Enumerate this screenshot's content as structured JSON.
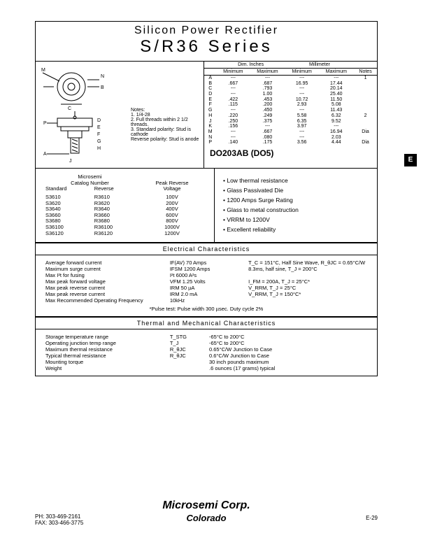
{
  "header": {
    "line1": "Silicon Power Rectifier",
    "line2": "S/R36 Series"
  },
  "notes": {
    "title": "Notes:",
    "items": [
      "1. 1/4-28",
      "2. Full threads within 2 1/2 threads.",
      "3. Standard polarity: Stud is cathode",
      "   Reverse polarity: Stud is anode"
    ]
  },
  "dim": {
    "hdr1": "Dim. Inches",
    "hdr2": "Millimeter",
    "cols": [
      "",
      "Minimum",
      "Maximum",
      "Minimum",
      "Maximum",
      "Notes"
    ],
    "rows": [
      [
        "A",
        "---",
        "---",
        "---",
        "---",
        "1"
      ],
      [
        "B",
        ".667",
        ".687",
        "16.95",
        "17.44",
        ""
      ],
      [
        "C",
        "---",
        ".793",
        "---",
        "20.14",
        ""
      ],
      [
        "D",
        "---",
        "1.00",
        "---",
        "25.40",
        ""
      ],
      [
        "E",
        ".422",
        ".453",
        "10.72",
        "11.50",
        ""
      ],
      [
        "F",
        ".115",
        ".200",
        "2.93",
        "5.08",
        ""
      ],
      [
        "G",
        "---",
        ".450",
        "---",
        "11.43",
        ""
      ],
      [
        "H",
        ".220",
        ".249",
        "5.58",
        "6.32",
        "2"
      ],
      [
        "J",
        ".250",
        ".375",
        "6.35",
        "9.52",
        ""
      ],
      [
        "K",
        ".156",
        "---",
        "3.97",
        "---",
        ""
      ],
      [
        "M",
        "---",
        ".667",
        "---",
        "16.94",
        "Dia"
      ],
      [
        "N",
        "---",
        ".080",
        "---",
        "2.03",
        ""
      ],
      [
        "P",
        ".140",
        ".175",
        "3.56",
        "4.44",
        "Dia"
      ]
    ]
  },
  "pkg": "DO203AB (DO5)",
  "catalog": {
    "hdr1": "Microsemi",
    "hdr2": "Catalog Number",
    "hdr3": "Peak Reverse",
    "c1": "Standard",
    "c2": "Reverse",
    "c3": "Voltage",
    "rows": [
      [
        "S3610",
        "R3610",
        "100V"
      ],
      [
        "S3620",
        "R3620",
        "200V"
      ],
      [
        "S3640",
        "R3640",
        "400V"
      ],
      [
        "S3660",
        "R3660",
        "600V"
      ],
      [
        "S3680",
        "R3680",
        "800V"
      ],
      [
        "S36100",
        "R36100",
        "1000V"
      ],
      [
        "S36120",
        "R36120",
        "1200V"
      ]
    ]
  },
  "features": [
    "Low thermal resistance",
    "Glass Passivated Die",
    "1200 Amps Surge Rating",
    "Glass to metal construction",
    "VRRM to 1200V",
    "Excellent reliability"
  ],
  "elec": {
    "title": "Electrical Characteristics",
    "rows": [
      [
        "Average forward current",
        "IF(AV) 70 Amps",
        "T_C = 151°C, Half Sine Wave, R_θJC = 0.65°C/W"
      ],
      [
        "Maximum surge current",
        "IFSM 1200 Amps",
        "8.3ms, half sine, T_J = 200°C"
      ],
      [
        "Max I²t for fusing",
        "I²t 6000 A²s",
        ""
      ],
      [
        "Max peak forward voltage",
        "VFM 1.25 Volts",
        "I_FM = 200A, T_J = 25°C*"
      ],
      [
        "Max peak reverse current",
        "IRM 50 µA",
        "V_RRM, T_J = 25°C"
      ],
      [
        "Max peak reverse current",
        "IRM 2.0 mA",
        "V_RRM, T_J = 150°C*"
      ],
      [
        "Max Recommended Operating Frequency",
        "10kHz",
        ""
      ]
    ],
    "note": "*Pulse test: Pulse width 300 µsec. Duty cycle 2%"
  },
  "therm": {
    "title": "Thermal and Mechanical Characteristics",
    "rows": [
      [
        "Storage temperature range",
        "T_STG",
        "-65°C to 200°C"
      ],
      [
        "Operating junction temp range",
        "T_J",
        "-65°C to 200°C"
      ],
      [
        "Maximum thermal resistance",
        "R_θJC",
        "0.65°C/W Junction to Case"
      ],
      [
        "Typical thermal resistance",
        "R_θJC",
        "0.6°C/W Junction to Case"
      ],
      [
        "Mounting torque",
        "",
        "30 inch pounds maximum"
      ],
      [
        "Weight",
        "",
        ".6 ounces (17 grams) typical"
      ]
    ]
  },
  "footer": {
    "logo1": "Microsemi Corp.",
    "logo2": "Colorado",
    "ph": "PH: 303-469-2161",
    "fax": "FAX: 303-466-3775",
    "pg": "E-29"
  },
  "sidetab": "E"
}
